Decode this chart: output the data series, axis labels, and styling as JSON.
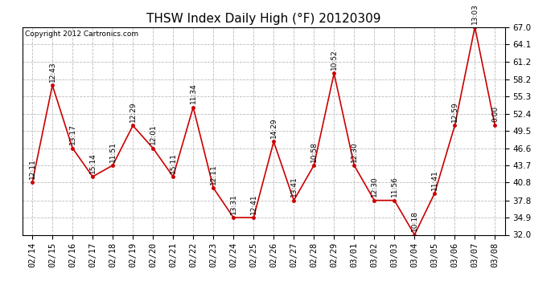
{
  "title": "THSW Index Daily High (°F) 20120309",
  "copyright": "Copyright 2012 Cartronics.com",
  "dates": [
    "02/14",
    "02/15",
    "02/16",
    "02/17",
    "02/18",
    "02/19",
    "02/20",
    "02/21",
    "02/22",
    "02/23",
    "02/24",
    "02/25",
    "02/26",
    "02/27",
    "02/28",
    "02/29",
    "03/01",
    "03/02",
    "03/03",
    "03/04",
    "03/05",
    "03/06",
    "03/07",
    "03/08"
  ],
  "values": [
    40.8,
    57.2,
    46.6,
    41.8,
    43.7,
    50.4,
    46.6,
    41.8,
    53.5,
    39.9,
    34.9,
    34.9,
    47.7,
    37.8,
    43.7,
    59.2,
    43.7,
    37.8,
    37.8,
    32.0,
    39.0,
    50.4,
    67.0,
    50.4
  ],
  "times": [
    "12:11",
    "12:43",
    "13:17",
    "15:14",
    "11:51",
    "12:29",
    "12:01",
    "15:11",
    "11:34",
    "12:11",
    "13:31",
    "12:41",
    "14:29",
    "13:41",
    "10:58",
    "10:52",
    "12:30",
    "12:30",
    "11:56",
    "10:18",
    "11:41",
    "12:59",
    "13:03",
    "0:00"
  ],
  "ylim": [
    32.0,
    67.0
  ],
  "yticks": [
    32.0,
    34.9,
    37.8,
    40.8,
    43.7,
    46.6,
    49.5,
    52.4,
    55.3,
    58.2,
    61.2,
    64.1,
    67.0
  ],
  "line_color": "#cc0000",
  "marker_color": "#cc0000",
  "bg_color": "#ffffff",
  "grid_color": "#bbbbbb",
  "title_fontsize": 11,
  "annot_fontsize": 6.5,
  "tick_fontsize": 7.5,
  "copyright_fontsize": 6.5
}
